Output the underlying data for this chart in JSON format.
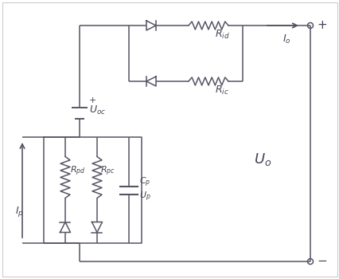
{
  "bg_color": "#ffffff",
  "line_color": "#555566",
  "lw": 1.1,
  "tc": "#444455",
  "border_color": "#cccccc",
  "figsize": [
    4.27,
    3.5
  ],
  "dpi": 100
}
